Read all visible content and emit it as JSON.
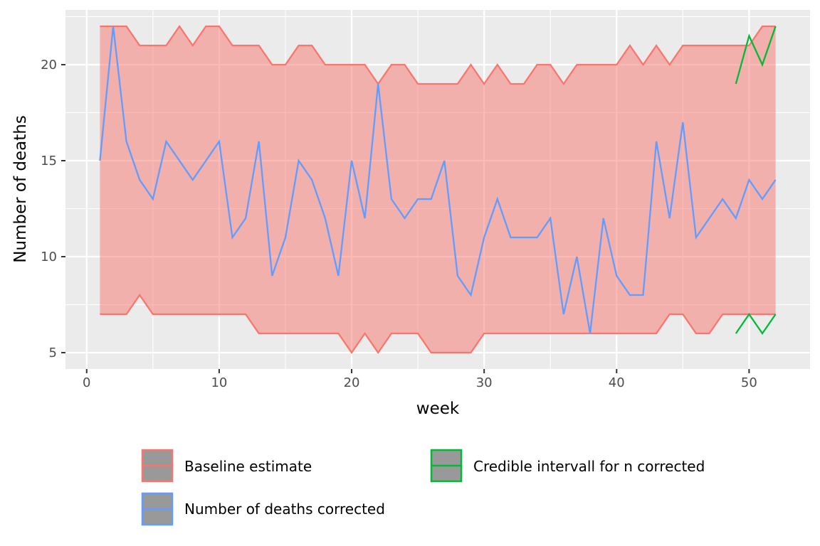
{
  "chart_data": {
    "type": "line",
    "xlabel": "week",
    "ylabel": "Number of deaths",
    "xlim": [
      -1.6,
      54.6
    ],
    "ylim": [
      4.15,
      22.85
    ],
    "x_ticks": [
      0,
      10,
      20,
      30,
      40,
      50
    ],
    "y_ticks": [
      5,
      10,
      15,
      20
    ],
    "grid": true,
    "legend_position": "bottom",
    "colors": {
      "panel_bg": "#ebebeb",
      "grid": "#ffffff",
      "baseline": "#f8766d",
      "baseline_fill": "#f8766d",
      "corrected": "#619cff",
      "credible": "#00ba38",
      "legend_key_fill": "#999999",
      "tick_text": "#4d4d4d"
    },
    "weeks": [
      1,
      2,
      3,
      4,
      5,
      6,
      7,
      8,
      9,
      10,
      11,
      12,
      13,
      14,
      15,
      16,
      17,
      18,
      19,
      20,
      21,
      22,
      23,
      24,
      25,
      26,
      27,
      28,
      29,
      30,
      31,
      32,
      33,
      34,
      35,
      36,
      37,
      38,
      39,
      40,
      41,
      42,
      43,
      44,
      45,
      46,
      47,
      48,
      49,
      50,
      51,
      52
    ],
    "series": [
      {
        "name": "Baseline estimate",
        "kind": "ribbon",
        "upper": [
          22,
          22,
          22,
          21,
          21,
          21,
          22,
          21,
          22,
          22,
          21,
          21,
          21,
          20,
          20,
          21,
          21,
          20,
          20,
          20,
          20,
          19,
          20,
          20,
          19,
          19,
          19,
          19,
          20,
          19,
          20,
          19,
          19,
          20,
          20,
          19,
          20,
          20,
          20,
          20,
          21,
          20,
          21,
          20,
          21,
          21,
          21,
          21,
          21,
          21,
          22,
          22
        ],
        "lower": [
          7,
          7,
          7,
          8,
          7,
          7,
          7,
          7,
          7,
          7,
          7,
          7,
          6,
          6,
          6,
          6,
          6,
          6,
          6,
          5,
          6,
          5,
          6,
          6,
          6,
          5,
          5,
          5,
          5,
          6,
          6,
          6,
          6,
          6,
          6,
          6,
          6,
          6,
          6,
          6,
          6,
          6,
          6,
          7,
          7,
          6,
          6,
          7,
          7,
          7,
          7,
          7
        ]
      },
      {
        "name": "Number of deaths corrected",
        "kind": "line",
        "values": [
          15,
          22,
          16,
          14,
          13,
          16,
          15,
          14,
          15,
          16,
          11,
          12,
          16,
          9,
          11,
          15,
          14,
          12,
          9,
          15,
          12,
          19,
          13,
          12,
          13,
          13,
          15,
          9,
          8,
          11,
          13,
          11,
          11,
          11,
          12,
          7,
          10,
          6,
          12,
          9,
          8,
          8,
          16,
          12,
          17,
          11,
          12,
          13,
          12,
          14,
          13,
          14
        ]
      },
      {
        "name": "Credible intervall for n corrected",
        "kind": "interval",
        "x": [
          49,
          50,
          51,
          52
        ],
        "upper": [
          19,
          21.5,
          20,
          22
        ],
        "lower": [
          6,
          7,
          6,
          7
        ]
      }
    ]
  }
}
